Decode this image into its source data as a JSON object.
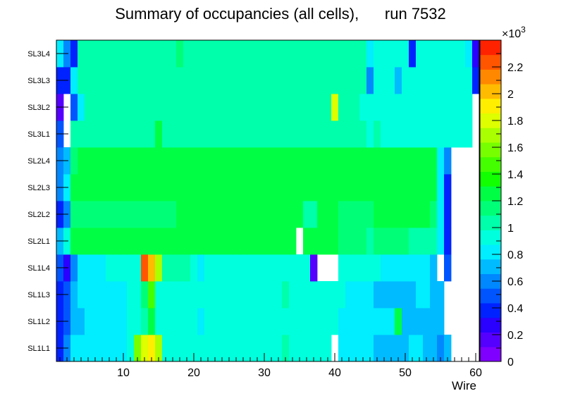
{
  "chart_data": {
    "type": "heatmap",
    "title": "Summary of occupancies (all cells),      run 7532",
    "xlabel": "Wire",
    "ylabel": "",
    "xlim": [
      0.5,
      60.5
    ],
    "x_ticks": [
      "10",
      "20",
      "30",
      "40",
      "50",
      "60"
    ],
    "x_tick_values": [
      10,
      20,
      30,
      40,
      50,
      60
    ],
    "rows": [
      "SL1L1",
      "SL1L2",
      "SL1L3",
      "SL1L4",
      "SL2L1",
      "SL2L2",
      "SL2L3",
      "SL2L4",
      "SL3L1",
      "SL3L2",
      "SL3L3",
      "SL3L4"
    ],
    "colorbar": {
      "min": 0,
      "max": 2.4,
      "exponent_label": "×10",
      "exponent_power": "3",
      "ticks": [
        "0",
        "0.2",
        "0.4",
        "0.6",
        "0.8",
        "1",
        "1.2",
        "1.4",
        "1.6",
        "1.8",
        "2",
        "2.2"
      ],
      "tick_values": [
        0,
        0.2,
        0.4,
        0.6,
        0.8,
        1.0,
        1.2,
        1.4,
        1.6,
        1.8,
        2.0,
        2.2
      ],
      "colors": [
        "#7f00ff",
        "#5500ff",
        "#2a00ff",
        "#0022ff",
        "#0055ff",
        "#0088ff",
        "#00bbff",
        "#00eeff",
        "#00ffdd",
        "#00ffaa",
        "#00ff77",
        "#00ff44",
        "#11ff00",
        "#44ff00",
        "#77ff00",
        "#aaff00",
        "#ddff00",
        "#ffee00",
        "#ffbb00",
        "#ff8800",
        "#ff5500",
        "#ff2200"
      ]
    },
    "values_unit": "×10^3 hits",
    "values": [
      [
        0.35,
        0.55,
        0.8,
        0.8,
        0.85,
        0.85,
        0.85,
        0.85,
        0.85,
        0.85,
        0.9,
        1.55,
        1.75,
        1.95,
        1.7,
        0.95,
        0.95,
        0.95,
        0.95,
        0.95,
        0.95,
        0.95,
        0.95,
        0.95,
        0.95,
        0.95,
        0.95,
        0.95,
        0.95,
        0.95,
        0.95,
        0.95,
        1.0,
        0.95,
        0.95,
        0.95,
        0.95,
        0.95,
        0.95,
        null,
        0.8,
        0.8,
        0.8,
        0.8,
        0.8,
        0.75,
        0.75,
        0.75,
        0.75,
        0.75,
        0.8,
        0.8,
        0.75,
        0.75,
        0.6,
        0.7,
        null,
        null,
        null,
        null
      ],
      [
        0.35,
        0.5,
        0.75,
        0.75,
        0.85,
        0.85,
        0.85,
        0.85,
        0.85,
        0.85,
        0.9,
        0.9,
        1.0,
        1.3,
        0.95,
        0.95,
        0.95,
        0.95,
        0.95,
        0.95,
        0.85,
        0.95,
        0.95,
        0.9,
        0.95,
        0.95,
        0.95,
        0.95,
        0.95,
        0.95,
        0.95,
        0.95,
        0.95,
        0.95,
        0.95,
        0.95,
        0.9,
        0.9,
        0.9,
        0.9,
        0.85,
        0.85,
        0.85,
        0.85,
        0.85,
        0.85,
        0.85,
        0.85,
        1.25,
        0.75,
        0.75,
        0.75,
        0.75,
        0.75,
        0.75,
        null,
        null,
        null,
        null,
        null
      ],
      [
        0.35,
        0.5,
        0.75,
        0.8,
        0.85,
        0.85,
        0.85,
        0.85,
        0.85,
        0.85,
        0.9,
        0.9,
        1.15,
        1.5,
        0.95,
        0.95,
        0.95,
        0.95,
        0.95,
        0.95,
        0.95,
        0.9,
        0.95,
        0.95,
        0.95,
        0.95,
        0.95,
        0.95,
        0.95,
        0.95,
        0.95,
        0.95,
        1.0,
        0.95,
        0.95,
        0.95,
        0.95,
        0.95,
        0.9,
        0.9,
        0.9,
        0.85,
        0.85,
        0.85,
        0.85,
        0.75,
        0.75,
        0.75,
        0.75,
        0.75,
        0.75,
        0.8,
        0.8,
        0.7,
        0.75,
        null,
        null,
        null,
        null,
        null
      ],
      [
        0.5,
        0.3,
        0.6,
        0.85,
        0.85,
        0.85,
        0.85,
        0.9,
        0.9,
        0.9,
        0.9,
        0.95,
        2.25,
        2.0,
        1.65,
        1.0,
        1.0,
        1.0,
        1.0,
        0.95,
        0.85,
        0.95,
        0.95,
        0.95,
        0.95,
        0.95,
        0.95,
        0.95,
        0.95,
        0.95,
        0.95,
        0.95,
        0.95,
        0.95,
        0.95,
        0.95,
        0.15,
        null,
        null,
        null,
        0.95,
        0.95,
        0.95,
        0.95,
        0.95,
        0.95,
        0.85,
        0.85,
        0.85,
        0.85,
        0.85,
        0.85,
        0.85,
        0.75,
        null,
        0.5,
        null,
        null,
        null,
        null
      ],
      [
        0.75,
        0.9,
        1.2,
        1.2,
        1.2,
        1.2,
        1.2,
        1.2,
        1.2,
        1.2,
        1.2,
        1.2,
        1.2,
        1.2,
        1.2,
        1.2,
        1.2,
        1.2,
        1.2,
        1.2,
        1.2,
        1.2,
        1.2,
        1.2,
        1.2,
        1.2,
        1.2,
        1.2,
        1.2,
        1.2,
        1.2,
        1.2,
        1.2,
        1.2,
        null,
        1.2,
        1.2,
        1.2,
        1.2,
        1.2,
        1.15,
        1.15,
        1.15,
        1.1,
        1.05,
        1.1,
        1.1,
        1.1,
        1.1,
        1.1,
        1.05,
        1.05,
        1.05,
        1.05,
        0.8,
        0.35,
        null,
        null,
        null,
        null
      ],
      [
        0.4,
        0.55,
        1.15,
        1.15,
        1.15,
        1.15,
        1.15,
        1.15,
        1.15,
        1.15,
        1.15,
        1.15,
        1.15,
        1.15,
        1.15,
        1.15,
        1.15,
        1.3,
        1.25,
        1.25,
        1.2,
        1.2,
        1.2,
        1.2,
        1.2,
        1.2,
        1.2,
        1.2,
        1.2,
        1.2,
        1.2,
        1.2,
        1.2,
        1.2,
        1.2,
        1.05,
        1.05,
        1.2,
        1.2,
        1.2,
        1.15,
        1.15,
        1.15,
        1.15,
        1.1,
        1.2,
        1.2,
        1.2,
        1.2,
        1.2,
        1.2,
        1.2,
        1.2,
        1.15,
        0.85,
        0.35,
        null,
        null,
        null,
        null
      ],
      [
        0.55,
        0.8,
        1.2,
        1.2,
        1.2,
        1.2,
        1.2,
        1.2,
        1.2,
        1.2,
        1.2,
        1.2,
        1.2,
        1.2,
        1.2,
        1.2,
        1.25,
        1.2,
        1.2,
        1.2,
        1.25,
        1.2,
        1.2,
        1.2,
        1.2,
        1.2,
        1.2,
        1.2,
        1.2,
        1.2,
        1.2,
        1.2,
        1.2,
        1.2,
        1.2,
        1.2,
        1.2,
        1.2,
        1.2,
        1.2,
        1.2,
        1.2,
        1.2,
        1.2,
        1.2,
        1.2,
        1.2,
        1.2,
        1.2,
        1.2,
        1.2,
        1.2,
        1.2,
        1.2,
        0.85,
        0.4,
        null,
        null,
        null,
        null
      ],
      [
        0.65,
        0.75,
        1.15,
        1.2,
        1.2,
        1.2,
        1.2,
        1.2,
        1.2,
        1.2,
        1.2,
        1.2,
        1.2,
        1.2,
        1.2,
        1.3,
        1.3,
        1.3,
        1.2,
        1.2,
        1.2,
        1.2,
        1.2,
        1.2,
        1.2,
        1.2,
        1.2,
        1.2,
        1.2,
        1.2,
        1.2,
        1.2,
        1.2,
        1.2,
        1.2,
        1.2,
        1.2,
        1.2,
        1.2,
        1.2,
        1.2,
        1.2,
        1.2,
        1.2,
        1.2,
        1.2,
        1.2,
        1.2,
        1.2,
        1.2,
        1.2,
        1.2,
        1.2,
        1.2,
        0.8,
        0.6,
        null,
        null,
        null,
        null
      ],
      [
        0.5,
        null,
        1.0,
        1.0,
        1.0,
        1.0,
        1.0,
        1.0,
        1.0,
        1.0,
        1.0,
        1.0,
        1.0,
        1.05,
        1.2,
        1.0,
        1.0,
        1.0,
        1.0,
        1.0,
        1.05,
        1.05,
        1.05,
        1.05,
        1.05,
        1.05,
        1.05,
        1.05,
        1.05,
        1.05,
        1.05,
        1.05,
        1.05,
        1.05,
        1.05,
        1.05,
        1.05,
        1.05,
        1.05,
        1.05,
        1.05,
        1.05,
        1.0,
        1.0,
        0.95,
        1.0,
        0.95,
        0.95,
        0.95,
        0.95,
        0.95,
        0.95,
        0.9,
        0.9,
        0.9,
        0.9,
        0.9,
        0.9,
        0.9,
        null
      ],
      [
        0.15,
        null,
        0.5,
        0.85,
        1.0,
        1.0,
        1.0,
        1.0,
        1.0,
        1.0,
        1.0,
        1.0,
        1.0,
        1.0,
        1.0,
        1.0,
        1.0,
        1.0,
        1.0,
        1.0,
        1.0,
        1.05,
        1.05,
        1.05,
        1.05,
        1.05,
        1.05,
        1.05,
        1.05,
        1.05,
        1.05,
        1.05,
        1.05,
        1.05,
        1.05,
        1.05,
        1.05,
        1.05,
        1.05,
        1.85,
        1.05,
        1.0,
        1.0,
        0.95,
        0.95,
        0.9,
        0.9,
        0.9,
        0.9,
        0.9,
        0.9,
        0.9,
        0.9,
        0.9,
        0.9,
        0.9,
        0.9,
        0.9,
        0.9,
        null
      ],
      [
        0.35,
        0.35,
        0.8,
        1.0,
        1.0,
        1.0,
        1.0,
        1.0,
        1.0,
        1.0,
        1.0,
        1.0,
        1.0,
        1.0,
        1.0,
        1.0,
        1.0,
        1.0,
        1.0,
        1.0,
        1.0,
        1.05,
        1.05,
        1.0,
        1.0,
        1.0,
        1.0,
        1.0,
        1.0,
        1.0,
        1.0,
        1.0,
        1.0,
        1.0,
        1.05,
        1.05,
        1.05,
        1.05,
        1.0,
        1.0,
        1.0,
        1.0,
        1.0,
        1.0,
        0.6,
        0.9,
        0.9,
        0.9,
        0.75,
        0.9,
        0.9,
        0.9,
        0.9,
        0.9,
        0.9,
        0.9,
        0.9,
        0.9,
        0.9,
        0.4
      ],
      [
        0.8,
        0.6,
        0.4,
        1.0,
        1.0,
        1.0,
        1.0,
        1.0,
        1.0,
        1.0,
        1.0,
        1.0,
        1.0,
        1.0,
        1.05,
        1.05,
        1.05,
        1.15,
        1.05,
        1.05,
        1.05,
        1.05,
        1.05,
        1.05,
        1.05,
        1.05,
        1.05,
        1.05,
        1.05,
        1.05,
        1.05,
        1.05,
        1.05,
        1.05,
        1.05,
        1.05,
        1.05,
        1.05,
        1.05,
        1.05,
        1.05,
        1.05,
        1.05,
        1.05,
        0.85,
        0.9,
        0.9,
        0.9,
        0.9,
        0.9,
        0.4,
        0.9,
        0.9,
        0.9,
        0.9,
        0.9,
        0.9,
        0.9,
        0.85,
        0.3
      ]
    ]
  }
}
